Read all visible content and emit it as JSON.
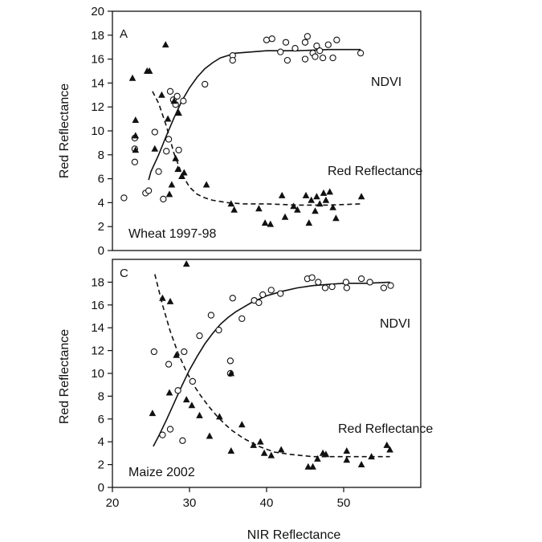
{
  "figure": {
    "xlabel": "NIR Reflectance"
  },
  "chart_data": [
    {
      "type": "scatter",
      "panel_letter": "A",
      "title": "",
      "caption": "Wheat 1997-98",
      "xlabel": "",
      "ylabel": "Red Reflectance",
      "xlim": [
        20,
        60
      ],
      "ylim": [
        0,
        20
      ],
      "yticks": [
        0,
        2,
        4,
        6,
        8,
        10,
        12,
        14,
        16,
        18,
        20
      ],
      "xticks": [],
      "grid": false,
      "annotations": [
        "NDVI",
        "Red Reflectance"
      ],
      "series": [
        {
          "name": "NDVI",
          "marker": "open-circle",
          "points": [
            [
              21.5,
              4.4
            ],
            [
              24.3,
              4.8
            ],
            [
              24.7,
              5.0
            ],
            [
              22.9,
              7.4
            ],
            [
              22.9,
              8.5
            ],
            [
              22.9,
              9.4
            ],
            [
              25.5,
              9.9
            ],
            [
              26.0,
              6.6
            ],
            [
              26.6,
              4.3
            ],
            [
              27.0,
              8.3
            ],
            [
              27.3,
              9.3
            ],
            [
              27.5,
              13.3
            ],
            [
              27.9,
              12.6
            ],
            [
              28.2,
              12.2
            ],
            [
              28.4,
              12.9
            ],
            [
              28.6,
              8.4
            ],
            [
              29.2,
              12.5
            ],
            [
              32.0,
              13.9
            ],
            [
              35.6,
              16.3
            ],
            [
              35.6,
              15.9
            ],
            [
              40.0,
              17.6
            ],
            [
              40.7,
              17.7
            ],
            [
              41.8,
              16.6
            ],
            [
              42.5,
              17.4
            ],
            [
              42.7,
              15.9
            ],
            [
              43.7,
              16.9
            ],
            [
              45.0,
              17.4
            ],
            [
              45.0,
              16.0
            ],
            [
              45.3,
              17.9
            ],
            [
              46.0,
              16.5
            ],
            [
              46.3,
              16.2
            ],
            [
              46.5,
              17.1
            ],
            [
              46.9,
              16.7
            ],
            [
              47.3,
              16.1
            ],
            [
              48.0,
              17.2
            ],
            [
              48.6,
              16.1
            ],
            [
              49.1,
              17.6
            ],
            [
              52.2,
              16.5
            ]
          ]
        },
        {
          "name": "Red Reflectance",
          "marker": "filled-triangle",
          "points": [
            [
              22.6,
              14.4
            ],
            [
              23.0,
              10.9
            ],
            [
              23.0,
              9.6
            ],
            [
              23.0,
              8.4
            ],
            [
              24.5,
              15.0
            ],
            [
              24.8,
              15.0
            ],
            [
              25.5,
              8.5
            ],
            [
              26.4,
              13.0
            ],
            [
              26.9,
              17.2
            ],
            [
              27.2,
              11.0
            ],
            [
              27.4,
              4.7
            ],
            [
              27.7,
              5.5
            ],
            [
              28.0,
              12.5
            ],
            [
              28.2,
              7.7
            ],
            [
              28.5,
              6.8
            ],
            [
              28.6,
              11.5
            ],
            [
              29.0,
              6.2
            ],
            [
              29.3,
              6.5
            ],
            [
              32.2,
              5.5
            ],
            [
              35.4,
              3.9
            ],
            [
              35.8,
              3.4
            ],
            [
              39.0,
              3.5
            ],
            [
              39.8,
              2.3
            ],
            [
              40.5,
              2.2
            ],
            [
              42.0,
              4.6
            ],
            [
              42.4,
              2.8
            ],
            [
              43.5,
              3.7
            ],
            [
              44.0,
              3.4
            ],
            [
              45.1,
              4.6
            ],
            [
              45.5,
              2.3
            ],
            [
              45.8,
              4.2
            ],
            [
              46.3,
              3.3
            ],
            [
              46.5,
              4.5
            ],
            [
              46.9,
              3.9
            ],
            [
              47.4,
              4.8
            ],
            [
              47.7,
              4.2
            ],
            [
              48.2,
              4.9
            ],
            [
              48.6,
              3.6
            ],
            [
              49.0,
              2.7
            ],
            [
              52.3,
              4.5
            ]
          ]
        }
      ],
      "fits": [
        {
          "series": "NDVI",
          "style": "solid",
          "x": [
            24.7,
            25.0,
            26.0,
            27.0,
            28.0,
            29.0,
            30.0,
            31.0,
            32.0,
            33.0,
            34.0,
            35.0,
            36.0,
            38.0,
            40.0,
            44.0,
            48.0,
            52.2
          ],
          "y": [
            5.9,
            6.6,
            8.0,
            9.6,
            11.1,
            12.5,
            13.6,
            14.5,
            15.2,
            15.7,
            16.1,
            16.3,
            16.5,
            16.6,
            16.7,
            16.7,
            16.8,
            16.8
          ]
        },
        {
          "series": "Red Reflectance",
          "style": "dashed",
          "x": [
            25.2,
            26.0,
            27.0,
            28.0,
            29.0,
            30.0,
            31.0,
            32.0,
            33.0,
            34.0,
            35.0,
            37.0,
            40.0,
            44.0,
            48.0,
            52.2
          ],
          "y": [
            13.3,
            12.3,
            10.4,
            8.1,
            6.4,
            5.3,
            4.7,
            4.4,
            4.2,
            4.1,
            4.0,
            3.9,
            3.9,
            3.8,
            3.8,
            3.9
          ]
        }
      ]
    },
    {
      "type": "scatter",
      "panel_letter": "C",
      "title": "",
      "caption": "Maize 2002",
      "xlabel": "NIR Reflectance",
      "ylabel": "Red Reflectance",
      "xlim": [
        20,
        60
      ],
      "ylim": [
        0,
        20
      ],
      "yticks": [
        0,
        2,
        4,
        6,
        8,
        10,
        12,
        14,
        16,
        18
      ],
      "xticks": [
        20,
        30,
        40,
        50
      ],
      "grid": false,
      "annotations": [
        "NDVI",
        "Red Reflectance"
      ],
      "series": [
        {
          "name": "NDVI",
          "marker": "open-circle",
          "points": [
            [
              25.4,
              11.9
            ],
            [
              26.5,
              4.6
            ],
            [
              27.3,
              10.8
            ],
            [
              27.5,
              5.1
            ],
            [
              28.5,
              8.5
            ],
            [
              29.1,
              4.1
            ],
            [
              29.3,
              11.9
            ],
            [
              30.4,
              9.3
            ],
            [
              31.3,
              13.3
            ],
            [
              32.8,
              15.1
            ],
            [
              33.8,
              13.8
            ],
            [
              35.3,
              11.1
            ],
            [
              35.3,
              10.0
            ],
            [
              35.6,
              16.6
            ],
            [
              36.8,
              14.8
            ],
            [
              38.4,
              16.4
            ],
            [
              39.0,
              16.2
            ],
            [
              39.5,
              16.9
            ],
            [
              40.6,
              17.3
            ],
            [
              41.8,
              17.0
            ],
            [
              45.3,
              18.3
            ],
            [
              45.9,
              18.4
            ],
            [
              46.7,
              18.0
            ],
            [
              47.6,
              17.5
            ],
            [
              48.5,
              17.6
            ],
            [
              50.3,
              18.0
            ],
            [
              50.4,
              17.5
            ],
            [
              52.3,
              18.3
            ],
            [
              53.4,
              18.0
            ],
            [
              55.2,
              17.5
            ],
            [
              56.1,
              17.7
            ]
          ]
        },
        {
          "name": "Red Reflectance",
          "marker": "filled-triangle",
          "points": [
            [
              25.2,
              6.5
            ],
            [
              26.5,
              16.6
            ],
            [
              27.5,
              16.3
            ],
            [
              27.4,
              8.3
            ],
            [
              28.3,
              11.6
            ],
            [
              29.6,
              19.6
            ],
            [
              29.6,
              7.7
            ],
            [
              30.3,
              7.2
            ],
            [
              31.3,
              6.3
            ],
            [
              32.6,
              4.5
            ],
            [
              33.9,
              6.2
            ],
            [
              35.4,
              10.0
            ],
            [
              35.4,
              3.2
            ],
            [
              36.8,
              5.5
            ],
            [
              38.3,
              3.7
            ],
            [
              39.2,
              4.0
            ],
            [
              39.7,
              3.0
            ],
            [
              40.6,
              2.8
            ],
            [
              41.9,
              3.3
            ],
            [
              45.4,
              1.8
            ],
            [
              46.0,
              1.8
            ],
            [
              46.6,
              2.5
            ],
            [
              47.3,
              3.0
            ],
            [
              47.7,
              2.9
            ],
            [
              50.4,
              3.2
            ],
            [
              50.4,
              2.4
            ],
            [
              52.3,
              2.0
            ],
            [
              53.6,
              2.7
            ],
            [
              55.6,
              3.7
            ],
            [
              56.0,
              3.3
            ]
          ]
        }
      ],
      "fits": [
        {
          "series": "NDVI",
          "style": "solid",
          "x": [
            25.3,
            26.0,
            27.0,
            28.0,
            29.0,
            30.0,
            31.0,
            32.0,
            33.0,
            34.0,
            35.0,
            36.0,
            38.0,
            40.0,
            42.0,
            44.0,
            46.0,
            48.0,
            50.0,
            53.0,
            56.0
          ],
          "y": [
            3.6,
            4.5,
            5.9,
            7.4,
            8.9,
            10.3,
            11.5,
            12.6,
            13.5,
            14.3,
            14.9,
            15.4,
            16.2,
            16.8,
            17.2,
            17.5,
            17.7,
            17.8,
            17.9,
            17.9,
            18.0
          ]
        },
        {
          "series": "Red Reflectance",
          "style": "dashed",
          "x": [
            25.5,
            26.5,
            27.5,
            28.5,
            29.5,
            30.5,
            31.5,
            32.5,
            33.5,
            34.5,
            35.5,
            37.0,
            39.0,
            41.0,
            43.0,
            46.0,
            49.0,
            52.0,
            56.0
          ],
          "y": [
            18.7,
            16.0,
            13.7,
            11.8,
            10.3,
            9.0,
            8.0,
            7.1,
            6.3,
            5.6,
            5.0,
            4.3,
            3.6,
            3.1,
            2.9,
            2.7,
            2.7,
            2.7,
            2.7
          ]
        }
      ]
    }
  ]
}
